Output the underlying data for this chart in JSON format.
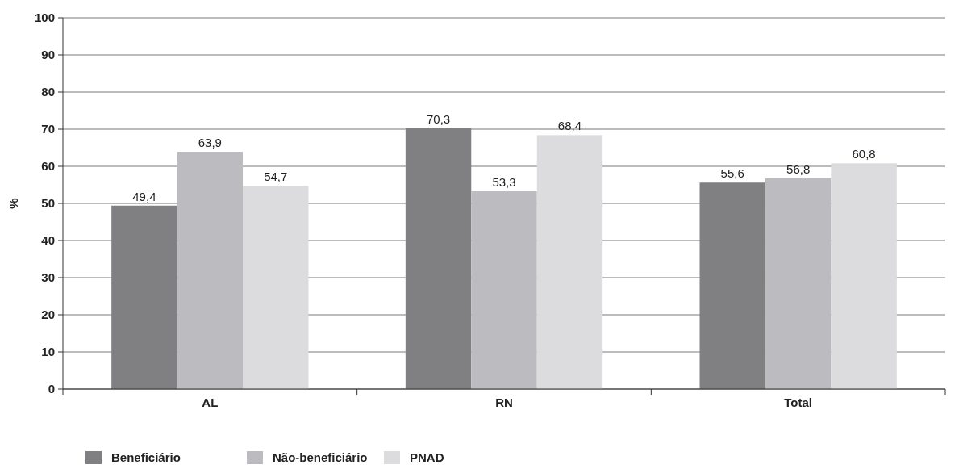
{
  "chart_data": {
    "type": "bar",
    "ylabel": "%",
    "categories": [
      "AL",
      "RN",
      "Total"
    ],
    "series": [
      {
        "name": "Beneficiário",
        "color": "#808083",
        "values": [
          49.4,
          70.3,
          55.6
        ],
        "value_labels": [
          "49,4",
          "70,3",
          "55,6"
        ]
      },
      {
        "name": "Não-beneficiário",
        "color": "#bcbcc0",
        "values": [
          63.9,
          53.3,
          56.8
        ],
        "value_labels": [
          "63,9",
          "53,3",
          "56,8"
        ]
      },
      {
        "name": "PNAD",
        "color": "#dcdcde",
        "values": [
          54.7,
          68.4,
          60.8
        ],
        "value_labels": [
          "54,7",
          "68,4",
          "60,8"
        ]
      }
    ],
    "ylim": [
      0,
      100
    ],
    "yticks": [
      0,
      10,
      20,
      30,
      40,
      50,
      60,
      70,
      80,
      90,
      100
    ],
    "grid": "y",
    "legend": "bottom left"
  }
}
